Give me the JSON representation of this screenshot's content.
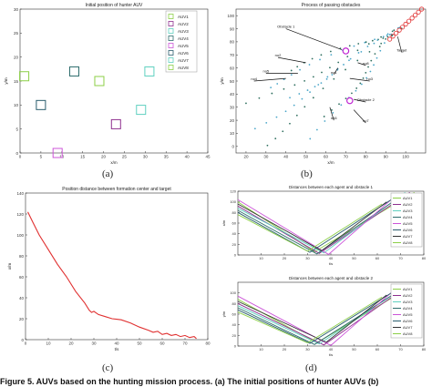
{
  "panel_labels": [
    "(a)",
    "(b)",
    "(c)",
    "(d)"
  ],
  "caption": "Figure 5. AUVs based on the hunting mission process. (a) The initial positions of hunter AUVs (b)",
  "chart_data": [
    {
      "id": "a",
      "type": "scatter",
      "title": "Initial position of hunter AUV",
      "xlabel": "x/m",
      "ylabel": "y/m",
      "xlim": [
        0,
        45
      ],
      "ylim": [
        0,
        30
      ],
      "xticks": [
        0,
        5,
        10,
        15,
        20,
        25,
        30,
        35,
        40,
        45
      ],
      "yticks": [
        0,
        5,
        10,
        15,
        20,
        25,
        30
      ],
      "legend_position": "top-right",
      "series": [
        {
          "name": "AUV1",
          "color": "#8ccf47",
          "x": 1,
          "y": 16
        },
        {
          "name": "AUV2",
          "color": "#8e2f8e",
          "x": 23,
          "y": 6
        },
        {
          "name": "AUV3",
          "color": "#5fd0c0",
          "x": 29,
          "y": 9
        },
        {
          "name": "AUV4",
          "color": "#2e6d6d",
          "x": 13,
          "y": 17
        },
        {
          "name": "AUV5",
          "color": "#cc55d8",
          "x": 9,
          "y": 0
        },
        {
          "name": "AUV6",
          "color": "#2a5d6e",
          "x": 5,
          "y": 10
        },
        {
          "name": "AUV7",
          "color": "#5fd0c0",
          "x": 31,
          "y": 17
        },
        {
          "name": "AUV8",
          "color": "#8ccf47",
          "x": 19,
          "y": 15
        }
      ]
    },
    {
      "id": "b",
      "type": "scatter",
      "title": "Process of passing obstacles",
      "xlabel": "x/m",
      "ylabel": "y/m",
      "xlim": [
        15,
        110
      ],
      "ylim": [
        -5,
        105
      ],
      "xticks": [
        20,
        30,
        40,
        50,
        60,
        70,
        80,
        90,
        100
      ],
      "yticks": [
        0,
        10,
        20,
        30,
        40,
        50,
        60,
        70,
        80,
        90,
        100
      ],
      "annotations": [
        "Obstacle 1",
        "Obstacle 2",
        "Target",
        "no1",
        "no2",
        "no3",
        "no4",
        "no5",
        "no6",
        "no7",
        "no8"
      ],
      "obstacles": [
        {
          "name": "Obstacle 1",
          "x": 70,
          "y": 73
        },
        {
          "name": "Obstacle 2",
          "x": 72,
          "y": 35
        }
      ],
      "target": {
        "x_start": 92,
        "y_start": 82,
        "x_end": 108,
        "y_end": 105
      }
    },
    {
      "id": "c",
      "type": "line",
      "title": "Position distance between formation center and target",
      "xlabel": "t/s",
      "ylabel": "x/m",
      "xlim": [
        0,
        80
      ],
      "ylim": [
        0,
        140
      ],
      "xticks": [
        0,
        10,
        20,
        30,
        40,
        50,
        60,
        70,
        80
      ],
      "yticks": [
        0,
        20,
        40,
        60,
        80,
        100,
        120,
        140
      ],
      "series": [
        {
          "color": "#e03030",
          "x": [
            1,
            3,
            6,
            10,
            14,
            18,
            22,
            26,
            28,
            29,
            30,
            32,
            35,
            38,
            42,
            46,
            50,
            54,
            56,
            58,
            60,
            62,
            64,
            66,
            68,
            70,
            72,
            74,
            75
          ],
          "y": [
            122,
            113,
            100,
            86,
            72,
            60,
            46,
            35,
            28,
            26,
            27,
            24,
            22,
            20,
            19,
            16,
            12,
            9,
            7,
            8,
            5,
            6,
            4,
            5,
            3,
            4,
            2,
            3,
            1
          ]
        }
      ]
    },
    {
      "id": "d1",
      "type": "line",
      "title": "Distances between each agent and obstacle 1",
      "xlabel": "t/s",
      "ylabel": "x/m",
      "xlim": [
        0,
        80
      ],
      "ylim": [
        0,
        120
      ],
      "xticks": [
        10,
        20,
        30,
        40,
        50,
        60,
        70,
        80
      ],
      "yticks": [
        0,
        20,
        40,
        60,
        80,
        100,
        120
      ],
      "legend_position": "top-right",
      "series": [
        {
          "name": "AUV1",
          "color": "#8ccf47",
          "x": [
            0,
            33,
            76
          ],
          "y": [
            100,
            6,
            118
          ]
        },
        {
          "name": "AUV2",
          "color": "#8e2f8e",
          "x": [
            0,
            35,
            74
          ],
          "y": [
            92,
            3,
            118
          ]
        },
        {
          "name": "AUV3",
          "color": "#5fd0c0",
          "x": [
            0,
            37,
            72
          ],
          "y": [
            88,
            4,
            118
          ]
        },
        {
          "name": "AUV4",
          "color": "#2e6d6d",
          "x": [
            0,
            34,
            70
          ],
          "y": [
            84,
            2,
            110
          ]
        },
        {
          "name": "AUV5",
          "color": "#cc55d8",
          "x": [
            0,
            39,
            68
          ],
          "y": [
            104,
            1,
            112
          ]
        },
        {
          "name": "AUV6",
          "color": "#2a5d6e",
          "x": [
            0,
            31,
            66
          ],
          "y": [
            80,
            5,
            104
          ]
        },
        {
          "name": "AUV7",
          "color": "#333333",
          "x": [
            0,
            36,
            64
          ],
          "y": [
            96,
            8,
            100
          ]
        },
        {
          "name": "AUV8",
          "color": "#8ccf47",
          "x": [
            0,
            30,
            62
          ],
          "y": [
            76,
            7,
            96
          ]
        }
      ]
    },
    {
      "id": "d2",
      "type": "line",
      "title": "Distances between each agent and obstacle 2",
      "xlabel": "t/s",
      "ylabel": "y/m",
      "xlim": [
        0,
        80
      ],
      "ylim": [
        0,
        120
      ],
      "xticks": [
        10,
        20,
        30,
        40,
        50,
        60,
        70,
        80
      ],
      "yticks": [
        0,
        20,
        40,
        60,
        80,
        100
      ],
      "legend_position": "top-right",
      "series": [
        {
          "name": "AUV1",
          "color": "#8ccf47",
          "x": [
            0,
            34,
            76
          ],
          "y": [
            88,
            6,
            116
          ]
        },
        {
          "name": "AUV2",
          "color": "#8e2f8e",
          "x": [
            0,
            37,
            74
          ],
          "y": [
            80,
            2,
            116
          ]
        },
        {
          "name": "AUV3",
          "color": "#5fd0c0",
          "x": [
            0,
            35,
            72
          ],
          "y": [
            76,
            4,
            112
          ]
        },
        {
          "name": "AUV4",
          "color": "#2e6d6d",
          "x": [
            0,
            33,
            70
          ],
          "y": [
            72,
            3,
            106
          ]
        },
        {
          "name": "AUV5",
          "color": "#cc55d8",
          "x": [
            0,
            40,
            68
          ],
          "y": [
            94,
            1,
            108
          ]
        },
        {
          "name": "AUV6",
          "color": "#2a5d6e",
          "x": [
            0,
            31,
            66
          ],
          "y": [
            68,
            5,
            100
          ]
        },
        {
          "name": "AUV7",
          "color": "#333333",
          "x": [
            0,
            38,
            64
          ],
          "y": [
            84,
            7,
            96
          ]
        },
        {
          "name": "AUV8",
          "color": "#8ccf47",
          "x": [
            0,
            30,
            62
          ],
          "y": [
            64,
            6,
            92
          ]
        }
      ]
    }
  ]
}
